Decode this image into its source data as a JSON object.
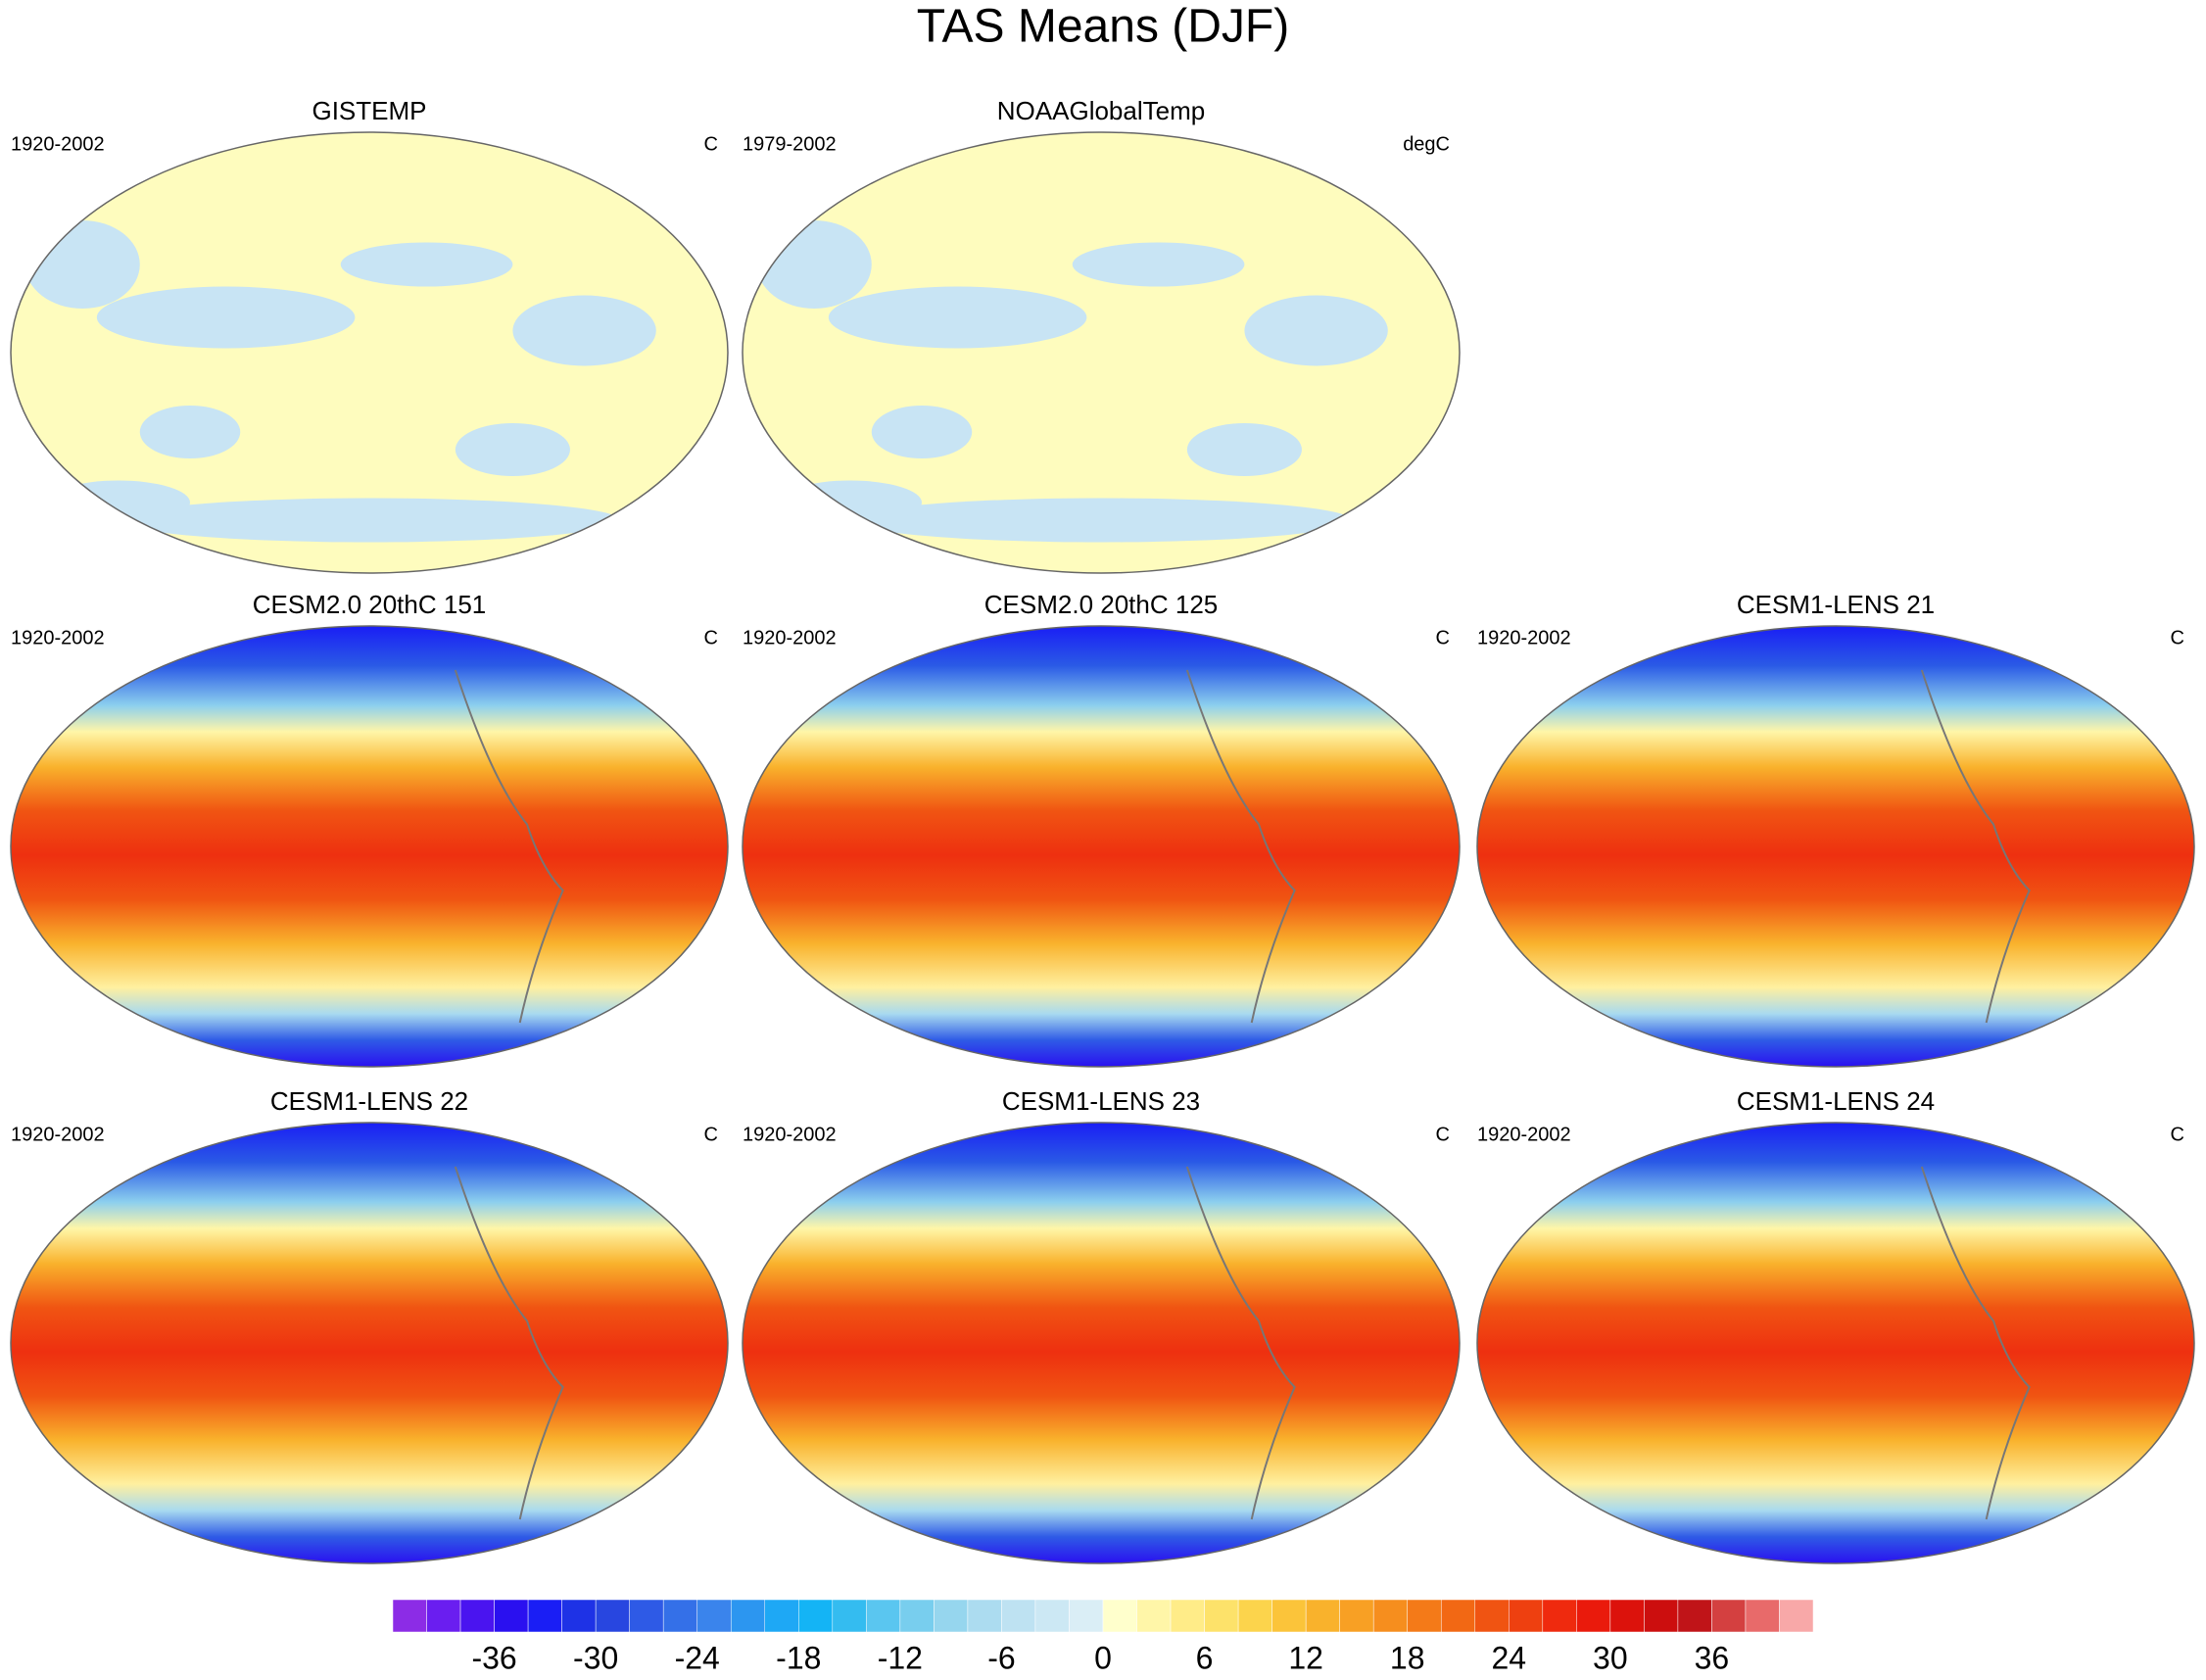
{
  "title": "TAS Means (DJF)",
  "rows": [
    [
      {
        "title": "GISTEMP",
        "period": "1920-2002",
        "units": "C"
      },
      {
        "title": "NOAAGlobalTemp",
        "period": "1979-2002",
        "units": "degC"
      }
    ],
    [
      {
        "title": "CESM2.0 20thC 151",
        "period": "1920-2002",
        "units": "C"
      },
      {
        "title": "CESM2.0 20thC 125",
        "period": "1920-2002",
        "units": "C"
      },
      {
        "title": "CESM1-LENS 21",
        "period": "1920-2002",
        "units": "C"
      }
    ],
    [
      {
        "title": "CESM1-LENS 22",
        "period": "1920-2002",
        "units": "C"
      },
      {
        "title": "CESM1-LENS 23",
        "period": "1920-2002",
        "units": "C"
      },
      {
        "title": "CESM1-LENS 24",
        "period": "1920-2002",
        "units": "C"
      }
    ]
  ],
  "colorbar": {
    "xlim": [
      -42,
      42
    ],
    "xticks": [
      -36,
      -30,
      -24,
      -18,
      -12,
      -6,
      0,
      6,
      12,
      18,
      24,
      30,
      36
    ],
    "colors": [
      "#8c2ce6",
      "#6a1ef0",
      "#4a14f0",
      "#2a10f0",
      "#1a1ef5",
      "#1e32e6",
      "#2846e0",
      "#2e5ae6",
      "#3470e8",
      "#3a84ec",
      "#2c96f0",
      "#1ea8f5",
      "#14b4f5",
      "#34bcf0",
      "#5ac6f0",
      "#78ceee",
      "#96d6ee",
      "#acdcf0",
      "#bee2f2",
      "#cce8f4",
      "#daeef6",
      "#ffffcc",
      "#fff6a8",
      "#ffec88",
      "#fde26a",
      "#fcd44c",
      "#fbc43a",
      "#f9b22c",
      "#f8a024",
      "#f68e1e",
      "#f47a18",
      "#f26814",
      "#f05412",
      "#ee4010",
      "#ef2a0e",
      "#ea1a0c",
      "#dc120c",
      "#cc0e0e",
      "#c01418",
      "#d44040",
      "#e86a6a",
      "#f8a8a8"
    ]
  }
}
